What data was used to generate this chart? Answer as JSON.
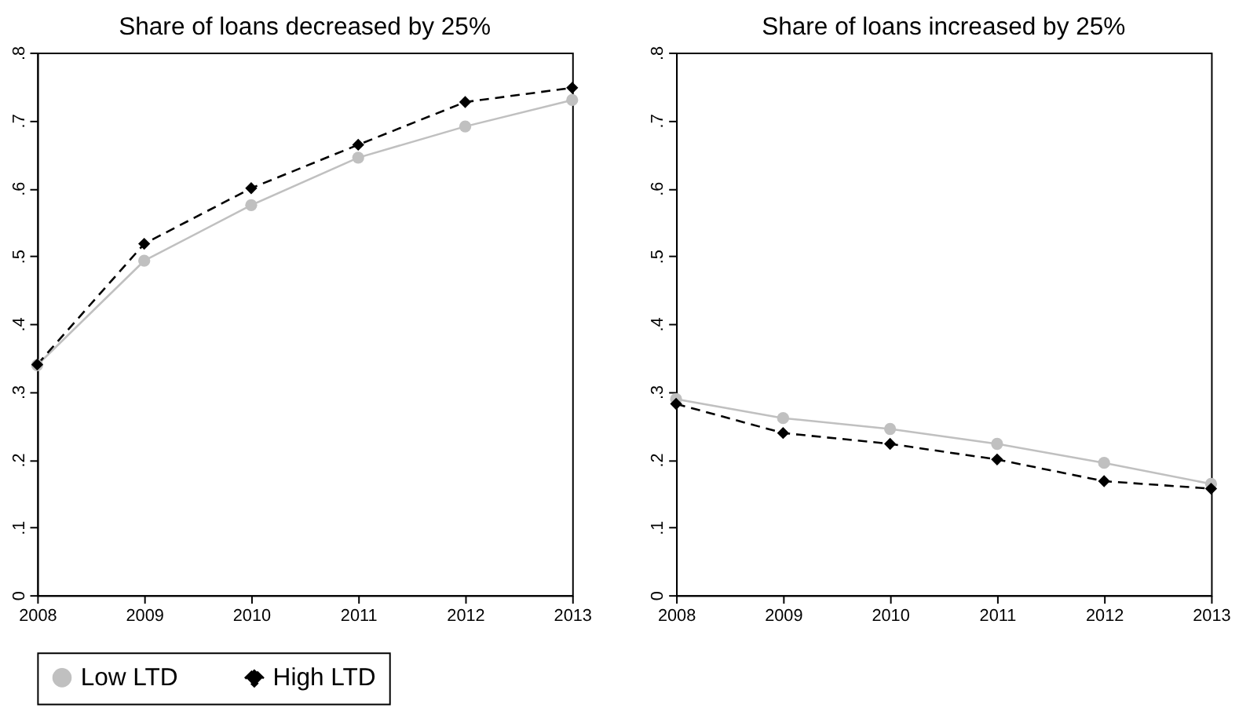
{
  "chart_data": [
    {
      "type": "line",
      "title": "Share of loans decreased by 25%",
      "x": [
        2008,
        2009,
        2010,
        2011,
        2012,
        2013
      ],
      "xlim": [
        2008,
        2013
      ],
      "xticks": [
        2008,
        2009,
        2010,
        2011,
        2012,
        2013
      ],
      "ylim": [
        0,
        0.8
      ],
      "yticks": [
        {
          "value": 0,
          "label": "0"
        },
        {
          "value": 0.1,
          "label": ".1"
        },
        {
          "value": 0.2,
          "label": ".2"
        },
        {
          "value": 0.3,
          "label": ".3"
        },
        {
          "value": 0.4,
          "label": ".4"
        },
        {
          "value": 0.5,
          "label": ".5"
        },
        {
          "value": 0.6,
          "label": ".6"
        },
        {
          "value": 0.7,
          "label": ".7"
        },
        {
          "value": 0.8,
          "label": ".8"
        }
      ],
      "grid": false,
      "legend": "bottom",
      "series": [
        {
          "name": "Low LTD",
          "color": "#c0c0c0",
          "marker": "circle",
          "line_style": "solid",
          "values": [
            0.339,
            0.493,
            0.575,
            0.645,
            0.691,
            0.73
          ]
        },
        {
          "name": "High LTD",
          "color": "#000000",
          "marker": "diamond",
          "line_style": "dashed",
          "values": [
            0.34,
            0.518,
            0.6,
            0.664,
            0.727,
            0.748
          ]
        }
      ]
    },
    {
      "type": "line",
      "title": "Share of loans increased by 25%",
      "x": [
        2008,
        2009,
        2010,
        2011,
        2012,
        2013
      ],
      "xlim": [
        2008,
        2013
      ],
      "xticks": [
        2008,
        2009,
        2010,
        2011,
        2012,
        2013
      ],
      "ylim": [
        0,
        0.8
      ],
      "yticks": [
        {
          "value": 0,
          "label": "0"
        },
        {
          "value": 0.1,
          "label": ".1"
        },
        {
          "value": 0.2,
          "label": ".2"
        },
        {
          "value": 0.3,
          "label": ".3"
        },
        {
          "value": 0.4,
          "label": ".4"
        },
        {
          "value": 0.5,
          "label": ".5"
        },
        {
          "value": 0.6,
          "label": ".6"
        },
        {
          "value": 0.7,
          "label": ".7"
        },
        {
          "value": 0.8,
          "label": ".8"
        }
      ],
      "grid": false,
      "legend": "bottom",
      "series": [
        {
          "name": "Low LTD",
          "color": "#c0c0c0",
          "marker": "circle",
          "line_style": "solid",
          "values": [
            0.289,
            0.261,
            0.245,
            0.223,
            0.195,
            0.164
          ]
        },
        {
          "name": "High LTD",
          "color": "#000000",
          "marker": "diamond",
          "line_style": "dashed",
          "values": [
            0.282,
            0.239,
            0.223,
            0.2,
            0.168,
            0.157
          ]
        }
      ]
    }
  ]
}
